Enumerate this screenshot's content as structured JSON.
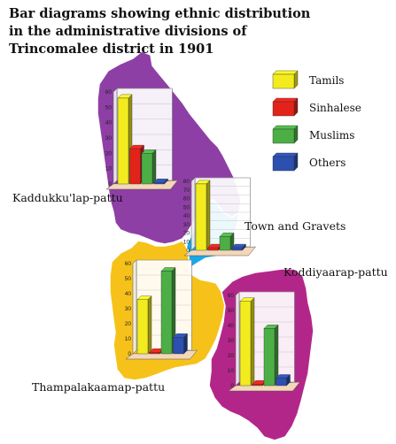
{
  "title": {
    "line1": "Bar diagrams showing ethnic distribution",
    "line2": "in the administrative divisions of",
    "line3": "Trincomalee district in 1901"
  },
  "legend": [
    {
      "label": "Tamils",
      "color": "#f2ec1f"
    },
    {
      "label": "Sinhalese",
      "color": "#e2231a"
    },
    {
      "label": "Muslims",
      "color": "#4caf45"
    },
    {
      "label": "Others",
      "color": "#2c4fb0"
    }
  ],
  "regions": {
    "kaddukkulam": {
      "label": "Kaddukku'lap-pattu",
      "color": "#8e3fa5"
    },
    "town": {
      "label": "Town and Gravets",
      "color": "#1aa7e6"
    },
    "thampalakaamam": {
      "label": "Thampalakaamap-pattu",
      "color": "#f6c21a"
    },
    "koddiyaaram": {
      "label": "Koddiyaarap-pattu",
      "color": "#b32689"
    }
  },
  "chart_data": [
    {
      "type": "bar",
      "name": "Kaddukku'lap-pattu",
      "categories": [
        "Tamils",
        "Sinhalese",
        "Muslims",
        "Others"
      ],
      "values": [
        56,
        23,
        20,
        1
      ],
      "ticks": [
        0,
        10,
        20,
        30,
        40,
        50,
        60
      ],
      "ylim": [
        0,
        60
      ]
    },
    {
      "type": "bar",
      "name": "Town and Gravets",
      "categories": [
        "Tamils",
        "Sinhalese",
        "Muslims",
        "Others"
      ],
      "values": [
        77,
        3,
        16,
        3
      ],
      "ticks": [
        0,
        10,
        20,
        30,
        40,
        50,
        60,
        70,
        80
      ],
      "ylim": [
        0,
        80
      ]
    },
    {
      "type": "bar",
      "name": "Thampalakaamap-pattu",
      "categories": [
        "Tamils",
        "Sinhalese",
        "Muslims",
        "Others"
      ],
      "values": [
        36,
        1,
        55,
        11
      ],
      "ticks": [
        0,
        10,
        20,
        30,
        40,
        50,
        60
      ],
      "ylim": [
        0,
        60
      ]
    },
    {
      "type": "bar",
      "name": "Koddiyaarap-pattu",
      "categories": [
        "Tamils",
        "Sinhalese",
        "Muslims",
        "Others"
      ],
      "values": [
        56,
        1,
        38,
        5
      ],
      "ticks": [
        0,
        10,
        20,
        30,
        40,
        50,
        60
      ],
      "ylim": [
        0,
        60
      ]
    }
  ]
}
